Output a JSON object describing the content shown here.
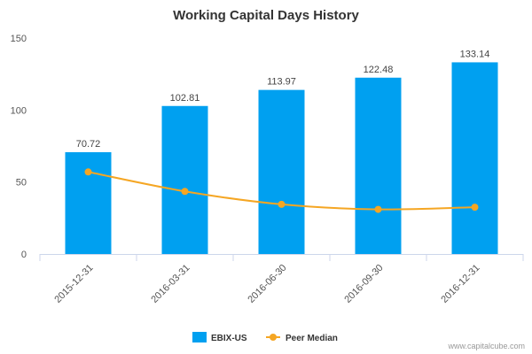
{
  "chart_data": {
    "type": "bar",
    "title": "Working Capital Days History",
    "categories": [
      "2015-12-31",
      "2016-03-31",
      "2016-06-30",
      "2016-09-30",
      "2016-12-31"
    ],
    "series": [
      {
        "name": "EBIX-US",
        "type": "bar",
        "values": [
          70.72,
          102.81,
          113.97,
          122.48,
          133.14
        ],
        "labels": [
          "70.72",
          "102.81",
          "113.97",
          "122.48",
          "133.14"
        ],
        "color": "#00a0f0"
      },
      {
        "name": "Peer Median",
        "type": "line",
        "values": [
          57,
          43.5,
          34.5,
          31,
          32.5
        ],
        "color": "#f5a623"
      }
    ],
    "ylim": [
      0,
      150
    ],
    "yticks": [
      0,
      50,
      100,
      150
    ],
    "xlabel": "",
    "ylabel": "",
    "grid": false,
    "legend_position": "bottom"
  },
  "credit": "www.capitalcube.com"
}
